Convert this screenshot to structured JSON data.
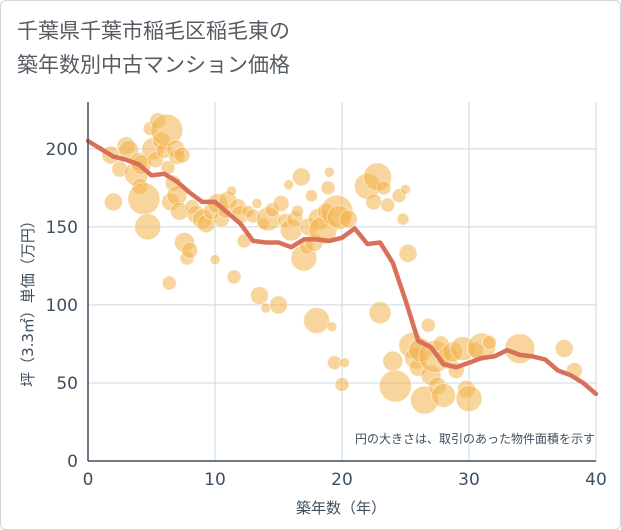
{
  "title_lines": [
    "千葉県千葉市稲毛区稲毛東の",
    "築年数別中古マンション価格"
  ],
  "chart_data": {
    "type": "scatter",
    "title": "千葉県千葉市稲毛区稲毛東の築年数別中古マンション価格",
    "xlabel": "築年数（年）",
    "ylabel": "坪（3.3㎡）単価（万円）",
    "xlim": [
      0,
      40
    ],
    "ylim": [
      0,
      230
    ],
    "xticks": [
      0,
      10,
      20,
      30,
      40
    ],
    "yticks": [
      0,
      50,
      100,
      150,
      200
    ],
    "grid": true,
    "annotation": "円の大きさは、取引のあった物件面積を示す",
    "colors": {
      "bubble": "#f2b24a",
      "line": "#d9705a",
      "grid": "#c9d7e3",
      "axis": "#3f4f5f"
    },
    "scatter": [
      {
        "x": 1.8,
        "y": 196,
        "s": 9
      },
      {
        "x": 2.0,
        "y": 166,
        "s": 9
      },
      {
        "x": 2.5,
        "y": 187,
        "s": 8
      },
      {
        "x": 3.0,
        "y": 202,
        "s": 9
      },
      {
        "x": 3.2,
        "y": 199,
        "s": 10
      },
      {
        "x": 3.8,
        "y": 184,
        "s": 12
      },
      {
        "x": 4.0,
        "y": 192,
        "s": 9
      },
      {
        "x": 4.1,
        "y": 176,
        "s": 8
      },
      {
        "x": 4.2,
        "y": 190,
        "s": 10
      },
      {
        "x": 4.4,
        "y": 168,
        "s": 16
      },
      {
        "x": 4.7,
        "y": 150,
        "s": 13
      },
      {
        "x": 4.9,
        "y": 213,
        "s": 7
      },
      {
        "x": 5.1,
        "y": 200,
        "s": 11
      },
      {
        "x": 5.3,
        "y": 193,
        "s": 8
      },
      {
        "x": 5.5,
        "y": 218,
        "s": 8
      },
      {
        "x": 5.8,
        "y": 205,
        "s": 9
      },
      {
        "x": 6.0,
        "y": 199,
        "s": 8
      },
      {
        "x": 6.2,
        "y": 212,
        "s": 16
      },
      {
        "x": 6.3,
        "y": 188,
        "s": 7
      },
      {
        "x": 6.4,
        "y": 114,
        "s": 7
      },
      {
        "x": 6.5,
        "y": 166,
        "s": 9
      },
      {
        "x": 6.7,
        "y": 178,
        "s": 8
      },
      {
        "x": 6.9,
        "y": 200,
        "s": 9
      },
      {
        "x": 7.0,
        "y": 195,
        "s": 8
      },
      {
        "x": 7.0,
        "y": 170,
        "s": 10
      },
      {
        "x": 7.2,
        "y": 160,
        "s": 9
      },
      {
        "x": 7.4,
        "y": 196,
        "s": 8
      },
      {
        "x": 7.6,
        "y": 140,
        "s": 10
      },
      {
        "x": 7.8,
        "y": 130,
        "s": 7
      },
      {
        "x": 8.0,
        "y": 135,
        "s": 8
      },
      {
        "x": 8.2,
        "y": 163,
        "s": 7
      },
      {
        "x": 8.5,
        "y": 158,
        "s": 9
      },
      {
        "x": 9.0,
        "y": 155,
        "s": 10
      },
      {
        "x": 9.3,
        "y": 152,
        "s": 9
      },
      {
        "x": 9.7,
        "y": 160,
        "s": 8
      },
      {
        "x": 10.0,
        "y": 129,
        "s": 5
      },
      {
        "x": 10.2,
        "y": 165,
        "s": 10
      },
      {
        "x": 10.5,
        "y": 155,
        "s": 8
      },
      {
        "x": 10.8,
        "y": 160,
        "s": 7
      },
      {
        "x": 11.0,
        "y": 167,
        "s": 9
      },
      {
        "x": 11.3,
        "y": 173,
        "s": 5
      },
      {
        "x": 11.5,
        "y": 118,
        "s": 7
      },
      {
        "x": 11.8,
        "y": 163,
        "s": 8
      },
      {
        "x": 12.0,
        "y": 158,
        "s": 9
      },
      {
        "x": 12.3,
        "y": 141,
        "s": 7
      },
      {
        "x": 12.6,
        "y": 160,
        "s": 6
      },
      {
        "x": 13.0,
        "y": 157,
        "s": 7
      },
      {
        "x": 13.3,
        "y": 165,
        "s": 5
      },
      {
        "x": 13.5,
        "y": 106,
        "s": 9
      },
      {
        "x": 13.8,
        "y": 152,
        "s": 6
      },
      {
        "x": 14.0,
        "y": 98,
        "s": 5
      },
      {
        "x": 14.2,
        "y": 155,
        "s": 12
      },
      {
        "x": 14.5,
        "y": 161,
        "s": 7
      },
      {
        "x": 15.0,
        "y": 100,
        "s": 9
      },
      {
        "x": 15.2,
        "y": 165,
        "s": 8
      },
      {
        "x": 15.5,
        "y": 154,
        "s": 7
      },
      {
        "x": 15.8,
        "y": 177,
        "s": 5
      },
      {
        "x": 16.0,
        "y": 148,
        "s": 11
      },
      {
        "x": 16.3,
        "y": 155,
        "s": 8
      },
      {
        "x": 16.5,
        "y": 160,
        "s": 6
      },
      {
        "x": 16.8,
        "y": 182,
        "s": 9
      },
      {
        "x": 17.0,
        "y": 130,
        "s": 13
      },
      {
        "x": 17.2,
        "y": 137,
        "s": 7
      },
      {
        "x": 17.4,
        "y": 150,
        "s": 9
      },
      {
        "x": 17.6,
        "y": 170,
        "s": 6
      },
      {
        "x": 17.8,
        "y": 140,
        "s": 9
      },
      {
        "x": 18.0,
        "y": 90,
        "s": 13
      },
      {
        "x": 18.2,
        "y": 155,
        "s": 11
      },
      {
        "x": 18.5,
        "y": 148,
        "s": 14
      },
      {
        "x": 18.7,
        "y": 160,
        "s": 8
      },
      {
        "x": 18.9,
        "y": 175,
        "s": 7
      },
      {
        "x": 19.0,
        "y": 185,
        "s": 5
      },
      {
        "x": 19.2,
        "y": 86,
        "s": 5
      },
      {
        "x": 19.4,
        "y": 63,
        "s": 7
      },
      {
        "x": 19.6,
        "y": 160,
        "s": 16
      },
      {
        "x": 19.8,
        "y": 156,
        "s": 12
      },
      {
        "x": 20.0,
        "y": 49,
        "s": 7
      },
      {
        "x": 20.2,
        "y": 63,
        "s": 5
      },
      {
        "x": 20.5,
        "y": 155,
        "s": 9
      },
      {
        "x": 22.0,
        "y": 176,
        "s": 13
      },
      {
        "x": 22.5,
        "y": 166,
        "s": 8
      },
      {
        "x": 22.8,
        "y": 182,
        "s": 14
      },
      {
        "x": 23.0,
        "y": 95,
        "s": 11
      },
      {
        "x": 23.3,
        "y": 175,
        "s": 7
      },
      {
        "x": 23.6,
        "y": 164,
        "s": 7
      },
      {
        "x": 24.0,
        "y": 64,
        "s": 10
      },
      {
        "x": 24.2,
        "y": 48,
        "s": 16
      },
      {
        "x": 24.5,
        "y": 170,
        "s": 7
      },
      {
        "x": 24.8,
        "y": 155,
        "s": 6
      },
      {
        "x": 25.0,
        "y": 174,
        "s": 5
      },
      {
        "x": 25.2,
        "y": 133,
        "s": 9
      },
      {
        "x": 25.5,
        "y": 74,
        "s": 13
      },
      {
        "x": 25.8,
        "y": 66,
        "s": 11
      },
      {
        "x": 26.0,
        "y": 60,
        "s": 9
      },
      {
        "x": 26.2,
        "y": 71,
        "s": 12
      },
      {
        "x": 26.5,
        "y": 39,
        "s": 14
      },
      {
        "x": 26.8,
        "y": 87,
        "s": 7
      },
      {
        "x": 27.0,
        "y": 55,
        "s": 10
      },
      {
        "x": 27.3,
        "y": 67,
        "s": 16
      },
      {
        "x": 27.5,
        "y": 48,
        "s": 9
      },
      {
        "x": 27.8,
        "y": 75,
        "s": 8
      },
      {
        "x": 28.0,
        "y": 42,
        "s": 12
      },
      {
        "x": 28.3,
        "y": 66,
        "s": 11
      },
      {
        "x": 28.7,
        "y": 70,
        "s": 10
      },
      {
        "x": 29.0,
        "y": 58,
        "s": 8
      },
      {
        "x": 29.5,
        "y": 72,
        "s": 12
      },
      {
        "x": 29.8,
        "y": 46,
        "s": 9
      },
      {
        "x": 30.0,
        "y": 40,
        "s": 13
      },
      {
        "x": 30.5,
        "y": 71,
        "s": 8
      },
      {
        "x": 31.0,
        "y": 73,
        "s": 14
      },
      {
        "x": 31.6,
        "y": 76,
        "s": 7
      },
      {
        "x": 34.0,
        "y": 72,
        "s": 15
      },
      {
        "x": 37.5,
        "y": 72,
        "s": 9
      },
      {
        "x": 38.3,
        "y": 58,
        "s": 8
      }
    ],
    "line": {
      "x": [
        0,
        1,
        2,
        3,
        4,
        5,
        6,
        7,
        8,
        9,
        10,
        11,
        12,
        13,
        14,
        15,
        16,
        17,
        18,
        19,
        20,
        21,
        22,
        23,
        24,
        25,
        26,
        27,
        28,
        29,
        30,
        31,
        32,
        33,
        34,
        35,
        36,
        37,
        38,
        39,
        40
      ],
      "y": [
        205,
        200,
        195,
        193,
        190,
        183,
        184,
        179,
        172,
        166,
        166,
        159,
        152,
        141,
        140,
        140,
        137,
        142,
        142,
        141,
        143,
        149,
        139,
        140,
        127,
        103,
        77,
        73,
        62,
        60,
        63,
        66,
        67,
        71,
        68,
        67,
        65,
        58,
        55,
        50,
        43
      ]
    }
  }
}
